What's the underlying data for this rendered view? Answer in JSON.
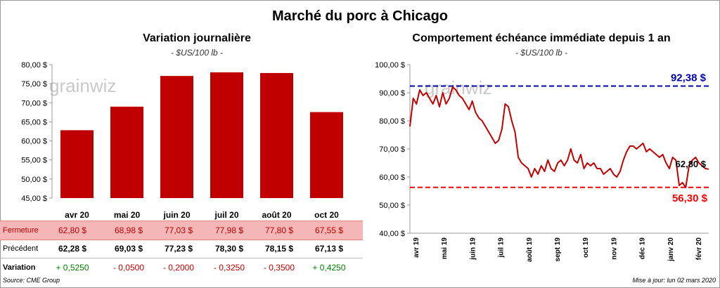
{
  "title": "Marché du porc à Chicago",
  "left_panel": {
    "title": "Variation journalière",
    "subtitle": "- $US/100 lb -"
  },
  "right_panel": {
    "title": "Comportement échéance immédiate depuis 1 an",
    "subtitle": "- $US/100 lb -"
  },
  "watermark": "grainwiz",
  "colors": {
    "bar": "#c00000",
    "line": "#c00000",
    "max_line": "#0000aa",
    "min_line": "#ff0000",
    "fermeture_bg": "#f4b6b6",
    "positive": "#008000",
    "negative": "#c00000"
  },
  "chart_data": [
    {
      "type": "bar",
      "categories": [
        "avr 20",
        "mai 20",
        "juin 20",
        "juil 20",
        "août 20",
        "oct 20"
      ],
      "values": [
        62.8,
        68.98,
        77.03,
        77.98,
        77.8,
        67.55
      ],
      "ylim": [
        45,
        80
      ],
      "yticks": [
        "80,00 $",
        "75,00 $",
        "70,00 $",
        "65,00 $",
        "60,00 $",
        "55,00 $",
        "50,00 $",
        "45,00 $"
      ],
      "ytick_values": [
        80,
        75,
        70,
        65,
        60,
        55,
        50,
        45
      ],
      "grid": false
    },
    {
      "type": "line",
      "x_range": [
        "2019-03-04",
        "2020-03-02"
      ],
      "xticks": [
        "avr 19",
        "mai 19",
        "juin 19",
        "juil 19",
        "août 19",
        "sept 19",
        "oct 19",
        "nov 19",
        "déc 19",
        "janv 20",
        "févr 20"
      ],
      "ylim": [
        40,
        100
      ],
      "yticks": [
        "100,00 $",
        "90,00 $",
        "80,00 $",
        "70,00 $",
        "60,00 $",
        "50,00 $",
        "40,00 $"
      ],
      "ytick_values": [
        100,
        90,
        80,
        70,
        60,
        50,
        40
      ],
      "max_value": 92.38,
      "max_label": "92,38 $",
      "min_value": 56.3,
      "min_label": "56,30 $",
      "last_label": "62,80 $",
      "series": [
        {
          "x": [
            "2019-03-04",
            "2019-03-08",
            "2019-03-12",
            "2019-03-16",
            "2019-03-20",
            "2019-03-24",
            "2019-03-28",
            "2019-04-01",
            "2019-04-05",
            "2019-04-09",
            "2019-04-13",
            "2019-04-17",
            "2019-04-21",
            "2019-04-25",
            "2019-04-29",
            "2019-05-03",
            "2019-05-07",
            "2019-05-11",
            "2019-05-15",
            "2019-05-19",
            "2019-05-23",
            "2019-05-27",
            "2019-05-31",
            "2019-06-04",
            "2019-06-08",
            "2019-06-12",
            "2019-06-16",
            "2019-06-20",
            "2019-06-24",
            "2019-06-28",
            "2019-07-02",
            "2019-07-06",
            "2019-07-10",
            "2019-07-14",
            "2019-07-18",
            "2019-07-22",
            "2019-07-26",
            "2019-07-30",
            "2019-08-03",
            "2019-08-07",
            "2019-08-11",
            "2019-08-15",
            "2019-08-19",
            "2019-08-23",
            "2019-08-27",
            "2019-08-31",
            "2019-09-04",
            "2019-09-08",
            "2019-09-12",
            "2019-09-16",
            "2019-09-20",
            "2019-09-24",
            "2019-09-28",
            "2019-10-02",
            "2019-10-06",
            "2019-10-10",
            "2019-10-14",
            "2019-10-18",
            "2019-10-22",
            "2019-10-26",
            "2019-10-30",
            "2019-11-03",
            "2019-11-07",
            "2019-11-11",
            "2019-11-15",
            "2019-11-19",
            "2019-11-23",
            "2019-11-27",
            "2019-12-01",
            "2019-12-05",
            "2019-12-09",
            "2019-12-13",
            "2019-12-17",
            "2019-12-21",
            "2019-12-25",
            "2019-12-29",
            "2020-01-02",
            "2020-01-06",
            "2020-01-10",
            "2020-01-14",
            "2020-01-18",
            "2020-01-22",
            "2020-01-26",
            "2020-01-30",
            "2020-02-03",
            "2020-02-07",
            "2020-02-11",
            "2020-02-15",
            "2020-02-19",
            "2020-02-23",
            "2020-02-27",
            "2020-03-02"
          ],
          "y": [
            78,
            88,
            86,
            91,
            89,
            90,
            88,
            86,
            89,
            85,
            90,
            86,
            88,
            92,
            91,
            89,
            88,
            86,
            84,
            87,
            83,
            81,
            80,
            78,
            76,
            74,
            72,
            73,
            77,
            86,
            85,
            80,
            76,
            67,
            65,
            64,
            63,
            60,
            63,
            61,
            64,
            62,
            66,
            63,
            62,
            65,
            66,
            64,
            66,
            70,
            66,
            65,
            68,
            63,
            65,
            64,
            65,
            63,
            63,
            61,
            62,
            63,
            61,
            60,
            62,
            66,
            69,
            71,
            71,
            70,
            71,
            72,
            69,
            70,
            69,
            68,
            67,
            68,
            65,
            63,
            67,
            66,
            57,
            58,
            56.3,
            64,
            66,
            67,
            65,
            64,
            63,
            62.8
          ]
        }
      ],
      "grid": false
    }
  ],
  "table": {
    "rows": [
      {
        "label": "Fermeture",
        "values": [
          "62,80  $",
          "68,98  $",
          "77,03  $",
          "77,98  $",
          "77,80  $",
          "67,55  $"
        ]
      },
      {
        "label": "Précédent",
        "values": [
          "62,28  $",
          "69,03  $",
          "77,23  $",
          "78,30  $",
          "78,15  $",
          "67,13  $"
        ]
      },
      {
        "label": "Variation",
        "values": [
          "+ 0,5250",
          "- 0,0500",
          "- 0,2000",
          "- 0,3250",
          "- 0,3500",
          "+ 0,4250"
        ],
        "signs": [
          "+",
          "-",
          "-",
          "-",
          "-",
          "+"
        ]
      }
    ]
  },
  "footer": {
    "source": "Source: CME Group",
    "update": "Mise à jour: lun 02 mars 2020"
  }
}
